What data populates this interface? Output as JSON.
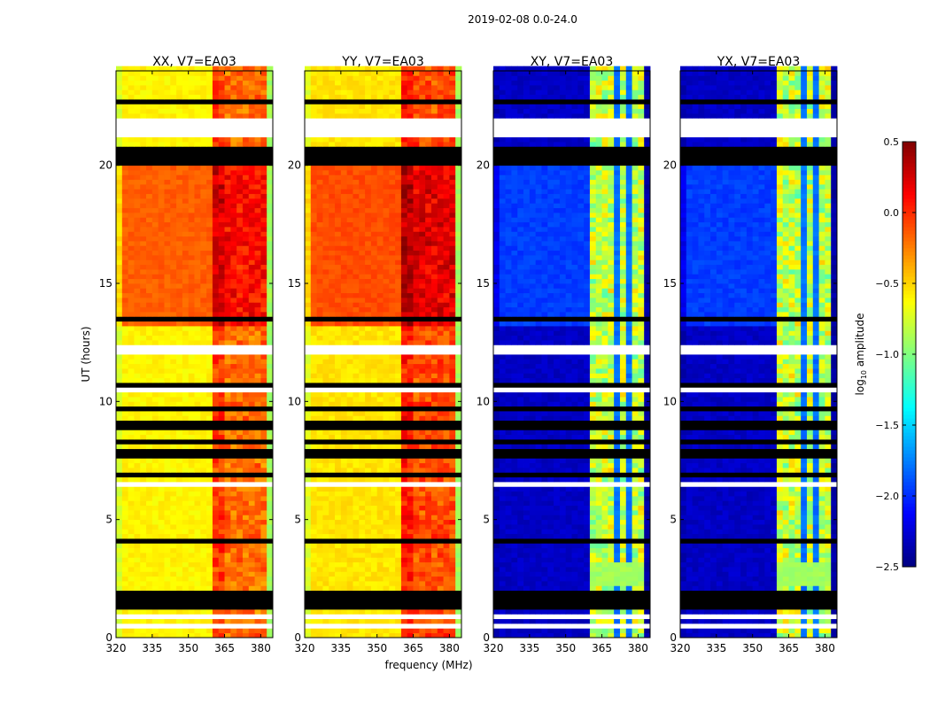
{
  "chart_data": {
    "type": "heatmap",
    "title": "2019-02-08 0.0-24.0",
    "xlabel": "frequency (MHz)",
    "ylabel": "UT (hours)",
    "xlim": [
      320,
      385
    ],
    "ylim": [
      0,
      24
    ],
    "xticks": [
      "320",
      "335",
      "350",
      "365",
      "380"
    ],
    "xtick_values": [
      320,
      335,
      350,
      365,
      380
    ],
    "yticks": [
      "0",
      "5",
      "10",
      "15",
      "20"
    ],
    "ytick_values": [
      0,
      5,
      10,
      15,
      20
    ],
    "colorbar": {
      "label_main": "log",
      "label_sub": "10",
      "label_rest": " amplitude",
      "colormap": "jet",
      "range": [
        -2.5,
        0.5
      ],
      "ticks": [
        "0.5",
        "0.0",
        "−0.5",
        "−1.0",
        "−1.5",
        "−2.0",
        "−2.5"
      ],
      "tick_values": [
        0.5,
        0.0,
        -0.5,
        -1.0,
        -1.5,
        -2.0,
        -2.5
      ]
    },
    "panels": [
      {
        "title": "XX, V7=EA03",
        "kind": "parallel",
        "offband": -0.6,
        "offband_active": -0.15,
        "inband": 0.0,
        "edge": -0.9
      },
      {
        "title": "YY, V7=EA03",
        "kind": "parallel",
        "offband": -0.55,
        "offband_active": -0.1,
        "inband": 0.1,
        "edge": -0.9
      },
      {
        "title": "XY, V7=EA03",
        "kind": "cross",
        "offband": -2.3,
        "offband_active": -1.95,
        "inband": -0.8,
        "edge": -2.4
      },
      {
        "title": "YX, V7=EA03",
        "kind": "cross",
        "offband": -2.3,
        "offband_active": -1.95,
        "inband": -0.8,
        "edge": -2.4
      }
    ],
    "band_mhz": [
      361,
      382
    ],
    "active_hours": [
      13.2,
      20.0
    ],
    "flagged_white_hours": [
      [
        21.1,
        22.05
      ],
      [
        23.3,
        23.45
      ],
      [
        23.55,
        23.65
      ],
      [
        11.9,
        12.3
      ],
      [
        6.5,
        6.6
      ],
      [
        5.6,
        5.7
      ],
      [
        3.2,
        3.3
      ],
      [
        0.85,
        0.95
      ],
      [
        0.5,
        0.55
      ],
      [
        2.0,
        2.08
      ],
      [
        12.95,
        13.05
      ],
      [
        10.45,
        10.55
      ],
      [
        17.0,
        17.08
      ],
      [
        18.3,
        18.36
      ],
      [
        15.55,
        15.65
      ],
      [
        19.2,
        19.26
      ]
    ],
    "flagged_black_hours": [
      [
        7.6,
        7.95
      ],
      [
        1.3,
        1.95
      ],
      [
        20.0,
        20.8
      ],
      [
        13.3,
        13.5
      ],
      [
        8.3,
        8.4
      ],
      [
        9.1,
        9.2
      ],
      [
        9.6,
        9.7
      ],
      [
        10.65,
        10.7
      ],
      [
        4.1,
        4.15
      ],
      [
        6.9,
        7.0
      ],
      [
        8.9,
        8.95
      ],
      [
        14.1,
        14.15
      ],
      [
        22.6,
        22.7
      ],
      [
        23.0,
        23.05
      ]
    ]
  }
}
